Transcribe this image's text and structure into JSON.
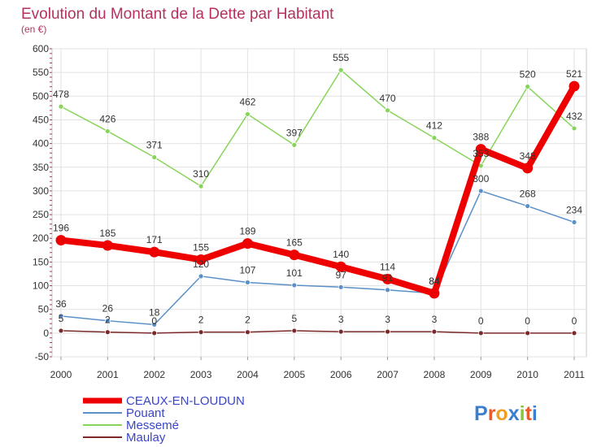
{
  "chart_data": {
    "type": "line",
    "title": "Evolution du Montant de la Dette par Habitant",
    "subtitle": "(en €)",
    "x": [
      "2000",
      "2001",
      "2002",
      "2003",
      "2004",
      "2005",
      "2006",
      "2007",
      "2008",
      "2009",
      "2010",
      "2011"
    ],
    "y_ticks": [
      "600",
      "550",
      "500",
      "450",
      "400",
      "350",
      "300",
      "250",
      "200",
      "150",
      "100",
      "50",
      "0",
      "-50"
    ],
    "ylim": [
      -50,
      600
    ],
    "grid": true,
    "legend_position": "bottom-left",
    "series": [
      {
        "name": "CEAUX-EN-LOUDUN",
        "color": "#ee0000",
        "values": [
          196,
          185,
          171,
          155,
          189,
          165,
          140,
          114,
          84,
          388,
          348,
          521
        ],
        "labels": [
          "196",
          "185",
          "171",
          "155",
          "189",
          "165",
          "140",
          "114",
          "84",
          "388",
          "348",
          "521"
        ]
      },
      {
        "name": "Pouant",
        "color": "#5a8fc8",
        "values": [
          36,
          26,
          18,
          120,
          107,
          101,
          97,
          91,
          84,
          300,
          268,
          234
        ],
        "labels": [
          "36",
          "26",
          "18",
          "120",
          "107",
          "101",
          "97",
          "91",
          "84",
          "300",
          "268",
          "234"
        ]
      },
      {
        "name": "Messemé",
        "color": "#88d45a",
        "values": [
          478,
          426,
          371,
          310,
          462,
          397,
          555,
          470,
          412,
          353,
          520,
          432
        ],
        "labels": [
          "478",
          "426",
          "371",
          "310",
          "462",
          "397",
          "555",
          "470",
          "412",
          "353",
          "520",
          "432"
        ]
      },
      {
        "name": "Maulay",
        "color": "#7a2a2a",
        "values": [
          5,
          2,
          0,
          2,
          2,
          5,
          3,
          3,
          3,
          0,
          0,
          0
        ],
        "labels": [
          "5",
          "2",
          "0",
          "2",
          "2",
          "5",
          "3",
          "3",
          "3",
          "0",
          "0",
          "0"
        ]
      }
    ]
  },
  "brand": {
    "logo_text": "Proxiti"
  }
}
